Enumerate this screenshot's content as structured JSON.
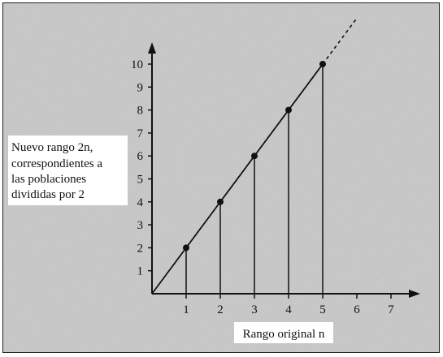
{
  "chart_data": {
    "type": "line",
    "x": [
      0,
      1,
      2,
      3,
      4,
      5
    ],
    "y": [
      0,
      2,
      4,
      6,
      8,
      10
    ],
    "points_marked": [
      {
        "x": 1,
        "y": 2
      },
      {
        "x": 2,
        "y": 4
      },
      {
        "x": 3,
        "y": 6
      },
      {
        "x": 4,
        "y": 8
      },
      {
        "x": 5,
        "y": 10
      }
    ],
    "xlim": [
      0,
      7
    ],
    "ylim": [
      0,
      10
    ],
    "x_ticks": [
      "1",
      "2",
      "3",
      "4",
      "5",
      "6",
      "7"
    ],
    "y_ticks": [
      "1",
      "2",
      "3",
      "4",
      "5",
      "6",
      "7",
      "8",
      "9",
      "10"
    ],
    "xlabel": "Rango original n",
    "ylabel_lines": [
      "Nuevo rango 2n,",
      "correspondientes a",
      "las poblaciones",
      "divididas por 2"
    ],
    "extension_dashed_to_x": 6,
    "grid": false,
    "legend": "none"
  },
  "colors": {
    "background_frame": "#cfcfcf",
    "ink": "#111111",
    "label_box": "#ffffff"
  }
}
